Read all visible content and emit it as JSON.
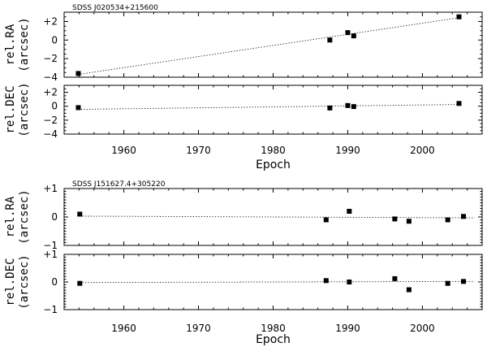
{
  "chart_data": [
    {
      "type": "scatter",
      "title": "SDSS J020534+215600",
      "xlabel": "Epoch",
      "ylabel": "rel.RA\n(arcsec)",
      "xlim": [
        1952,
        2008
      ],
      "xticks": [
        1960,
        1970,
        1980,
        1990,
        2000
      ],
      "ylim": [
        -4,
        3
      ],
      "yticks": [
        -4,
        -2,
        0,
        2
      ],
      "ytick_labels": [
        "−4",
        "−2",
        "0",
        "+2"
      ],
      "x": [
        1953.9,
        1987.6,
        1990.0,
        1990.8,
        2004.9
      ],
      "y": [
        -3.6,
        0.0,
        0.8,
        0.45,
        2.5
      ],
      "fit": {
        "x": [
          1953.9,
          2004.9
        ],
        "y": [
          -3.7,
          2.4
        ]
      }
    },
    {
      "type": "scatter",
      "xlabel": "Epoch",
      "ylabel": "rel.DEC\n(arcsec)",
      "xlim": [
        1952,
        2008
      ],
      "ylim": [
        -4,
        3
      ],
      "yticks": [
        -4,
        -2,
        0,
        2
      ],
      "ytick_labels": [
        "−4",
        "−2",
        "0",
        "+2"
      ],
      "x": [
        1953.9,
        1987.6,
        1990.0,
        1990.8,
        2004.9
      ],
      "y": [
        -0.2,
        -0.25,
        0.1,
        -0.05,
        0.4
      ],
      "fit": {
        "x": [
          1953.9,
          2004.9
        ],
        "y": [
          -0.45,
          0.25
        ]
      }
    },
    {
      "type": "scatter",
      "title": "SDSS J151627.4+305220",
      "xlabel": "Epoch",
      "ylabel": "rel.RA\n(arcsec)",
      "xlim": [
        1952,
        2008
      ],
      "xticks": [
        1960,
        1970,
        1980,
        1990,
        2000
      ],
      "ylim": [
        -1,
        1
      ],
      "yticks": [
        -1,
        0,
        1
      ],
      "ytick_labels": [
        "−1",
        "0",
        "+1"
      ],
      "x": [
        1954.1,
        1987.1,
        1990.2,
        1996.3,
        1998.2,
        2003.4,
        2005.5
      ],
      "y": [
        0.1,
        -0.1,
        0.2,
        -0.07,
        -0.15,
        -0.1,
        0.02
      ],
      "fit": {
        "x": [
          1954.1,
          2007.0
        ],
        "y": [
          0.03,
          -0.03
        ]
      }
    },
    {
      "type": "scatter",
      "xlabel": "Epoch",
      "ylabel": "rel.DEC\n(arcsec)",
      "xlim": [
        1952,
        2008
      ],
      "ylim": [
        -1,
        1
      ],
      "yticks": [
        -1,
        0,
        1
      ],
      "ytick_labels": [
        "−1",
        "0",
        "+1"
      ],
      "x": [
        1954.1,
        1987.1,
        1990.2,
        1996.3,
        1998.2,
        2003.4,
        2005.5
      ],
      "y": [
        -0.05,
        0.05,
        0.0,
        0.12,
        -0.28,
        -0.05,
        0.02
      ],
      "fit": {
        "x": [
          1954.1,
          2007.0
        ],
        "y": [
          -0.02,
          0.02
        ]
      }
    }
  ]
}
